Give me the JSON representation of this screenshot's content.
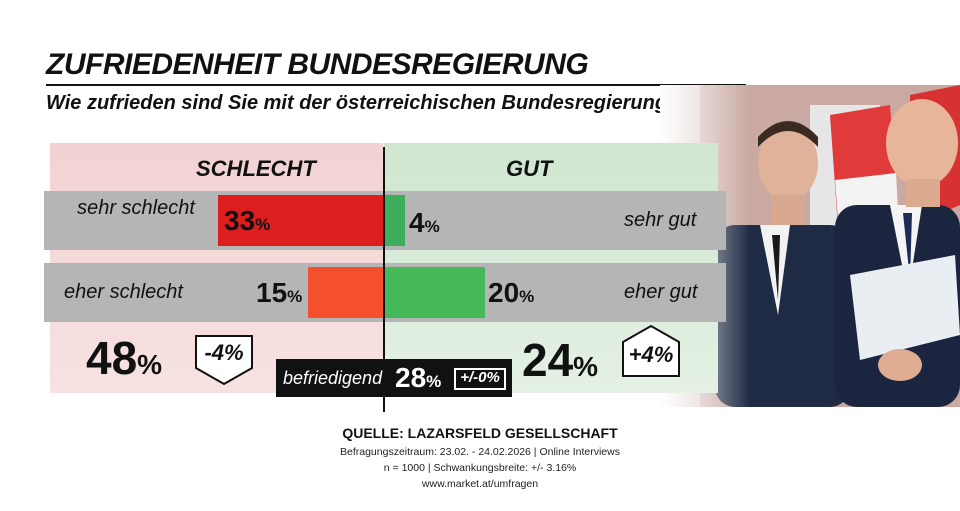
{
  "chart_data": {
    "type": "bar",
    "title": "ZUFRIEDENHEIT BUNDESREGIERUNG",
    "subtitle": "Wie zufrieden sind Sie mit der österreichischen Bundesregierung?",
    "negative": {
      "label": "SCHLECHT",
      "categories": [
        {
          "label": "sehr schlecht",
          "value": 33
        },
        {
          "label": "eher schlecht",
          "value": 15
        }
      ],
      "total": 48,
      "change": "-4%"
    },
    "positive": {
      "label": "GUT",
      "categories": [
        {
          "label": "sehr gut",
          "value": 4
        },
        {
          "label": "eher gut",
          "value": 20
        }
      ],
      "total": 24,
      "change": "+4%"
    },
    "neutral": {
      "label": "befriedigend",
      "value": 28,
      "change": "+/-0%"
    },
    "unit": "%",
    "xlim": [
      0,
      35
    ],
    "colors": {
      "strong_bad": "#dc1e1e",
      "light_bad": "#f4502d",
      "strong_good": "#3fae5c",
      "light_good": "#45b857"
    }
  },
  "source": {
    "title": "QUELLE:  LAZARSFELD GESELLSCHAFT",
    "line1": "Befragungszeitraum: 23.02. - 24.02.2026 | Online Interviews",
    "line2": "n = 1000 |  Schwankungsbreite: +/- 3.16%",
    "line3": "www.market.at/umfragen"
  },
  "photo_icon": "photo-two-politicians-with-austrian-flags"
}
